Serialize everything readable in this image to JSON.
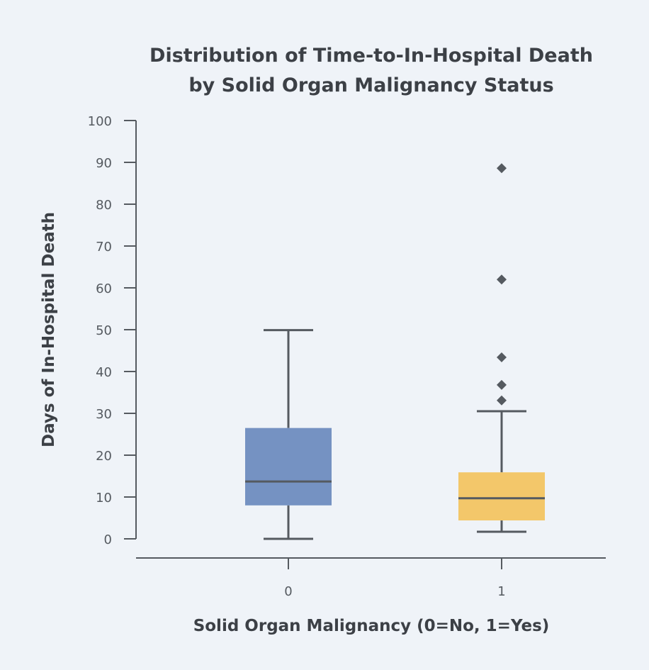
{
  "chart_data": {
    "type": "box",
    "title": [
      "Distribution of Time-to-In-Hospital Death",
      "by Solid Organ Malignancy Status"
    ],
    "xlabel": "Solid Organ Malignancy (0=No, 1=Yes)",
    "ylabel": "Days of In-Hospital Death",
    "ylim": [
      0,
      100
    ],
    "yticks": [
      0,
      10,
      20,
      30,
      40,
      50,
      60,
      70,
      80,
      90,
      100
    ],
    "categories": [
      "0",
      "1"
    ],
    "grid": false,
    "boxes": [
      {
        "category": "0",
        "whisker_low": 0,
        "q1": 8.0,
        "median": 13.7,
        "q3": 26.5,
        "whisker_high": 49.9,
        "outliers": [],
        "color": "#7592c2"
      },
      {
        "category": "1",
        "whisker_low": 1.7,
        "q1": 4.4,
        "median": 9.7,
        "q3": 15.9,
        "whisker_high": 30.5,
        "outliers": [
          33.1,
          36.8,
          43.4,
          62.0,
          88.6
        ],
        "color": "#f3c76a"
      }
    ],
    "line_color": "#555a60"
  }
}
